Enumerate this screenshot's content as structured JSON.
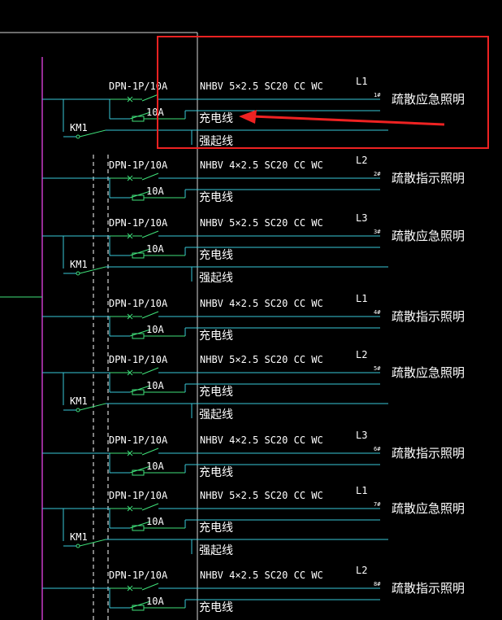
{
  "colors": {
    "background": "#000000",
    "wire": "#39c8d8",
    "breaker": "#3fe07a",
    "busbar": "#c83cc8",
    "frame": "#d8d8d8",
    "text": "#ffffff",
    "highlight": "#ee2222"
  },
  "contactor_label": "KM1",
  "circuits": [
    {
      "breaker": "DPN-1P/10A",
      "fuse": "10A",
      "cable": "NHBV 5×2.5 SC20 CC WC",
      "phase": "L1",
      "num": "1#",
      "load": "疏散应急照明",
      "charge": "充电线",
      "force": "强起线"
    },
    {
      "breaker": "DPN-1P/10A",
      "fuse": "10A",
      "cable": "NHBV 4×2.5 SC20 CC WC",
      "phase": "L2",
      "num": "2#",
      "load": "疏散指示照明",
      "charge": "充电线"
    },
    {
      "breaker": "DPN-1P/10A",
      "fuse": "10A",
      "cable": "NHBV 5×2.5 SC20 CC WC",
      "phase": "L3",
      "num": "3#",
      "load": "疏散应急照明",
      "charge": "充电线",
      "force": "强起线"
    },
    {
      "breaker": "DPN-1P/10A",
      "fuse": "10A",
      "cable": "NHBV 4×2.5 SC20 CC WC",
      "phase": "L1",
      "num": "4#",
      "load": "疏散指示照明",
      "charge": "充电线"
    },
    {
      "breaker": "DPN-1P/10A",
      "fuse": "10A",
      "cable": "NHBV 5×2.5 SC20 CC WC",
      "phase": "L2",
      "num": "5#",
      "load": "疏散应急照明",
      "charge": "充电线",
      "force": "强起线"
    },
    {
      "breaker": "DPN-1P/10A",
      "fuse": "10A",
      "cable": "NHBV 4×2.5 SC20 CC WC",
      "phase": "L3",
      "num": "6#",
      "load": "疏散指示照明",
      "charge": "充电线"
    },
    {
      "breaker": "DPN-1P/10A",
      "fuse": "10A",
      "cable": "NHBV 5×2.5 SC20 CC WC",
      "phase": "L1",
      "num": "7#",
      "load": "疏散应急照明",
      "charge": "充电线",
      "force": "强起线"
    },
    {
      "breaker": "DPN-1P/10A",
      "fuse": "10A",
      "cable": "NHBV 4×2.5 SC20 CC WC",
      "phase": "L2",
      "num": "8#",
      "load": "疏散指示照明",
      "charge": "充电线"
    }
  ]
}
